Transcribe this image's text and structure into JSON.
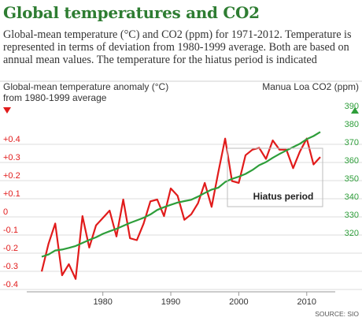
{
  "title": "Global temperatures and CO2",
  "subtitle": "Global-mean temperature (°C) and CO2 (ppm) for 1971-2012. Temperature is represented in terms of deviation from 1980-1999 average. Both are based on annual mean values. The temperature for the hiatus period is indicated",
  "source": "SOURCE: SIO",
  "colors": {
    "temperature": "#e11b1b",
    "co2": "#2e9e3a",
    "title": "#2e7d32"
  },
  "chart_data": {
    "type": "line",
    "x": [
      1971,
      1972,
      1973,
      1974,
      1975,
      1976,
      1977,
      1978,
      1979,
      1980,
      1981,
      1982,
      1983,
      1984,
      1985,
      1986,
      1987,
      1988,
      1989,
      1990,
      1991,
      1992,
      1993,
      1994,
      1995,
      1996,
      1997,
      1998,
      1999,
      2000,
      2001,
      2002,
      2003,
      2004,
      2005,
      2006,
      2007,
      2008,
      2009,
      2010,
      2011,
      2012
    ],
    "xticks": [
      "1980",
      "1990",
      "2000",
      "2010"
    ],
    "xlim": [
      1969.5,
      2013.5
    ],
    "series": [
      {
        "name": "Global-mean temperature anomaly (°C) from 1980-1999 average",
        "axis": "left",
        "color": "#e11b1b",
        "values": [
          -0.37,
          -0.22,
          -0.11,
          -0.39,
          -0.33,
          -0.41,
          -0.07,
          -0.24,
          -0.12,
          -0.08,
          -0.04,
          -0.18,
          0.02,
          -0.19,
          -0.2,
          -0.11,
          0.01,
          0.02,
          -0.07,
          0.08,
          0.04,
          -0.09,
          -0.06,
          0.0,
          0.11,
          -0.02,
          0.17,
          0.35,
          0.12,
          0.11,
          0.26,
          0.29,
          0.3,
          0.24,
          0.34,
          0.29,
          0.29,
          0.19,
          0.28,
          0.35,
          0.21,
          0.25
        ]
      },
      {
        "name": "Manua Loa CO2 (ppm)",
        "axis": "right",
        "color": "#2e9e3a",
        "values": [
          326.3,
          327.5,
          329.7,
          330.2,
          331.1,
          332.1,
          333.8,
          335.4,
          336.8,
          338.7,
          340.1,
          341.4,
          343.0,
          344.6,
          346.0,
          347.4,
          349.2,
          351.6,
          353.1,
          354.4,
          355.6,
          356.4,
          357.1,
          358.8,
          360.8,
          362.6,
          363.7,
          366.7,
          368.4,
          369.6,
          371.1,
          373.2,
          375.8,
          377.5,
          379.8,
          381.9,
          383.8,
          385.6,
          387.4,
          389.9,
          391.6,
          393.8
        ]
      }
    ],
    "left_axis": {
      "label": "Global-mean temperature anomaly (°C)\nfrom 1980-1999 average",
      "ticks": [
        "+0.4",
        "+0.3",
        "+0.2",
        "+0.1",
        "0",
        "-0.1",
        "-0.2",
        "-0.3",
        "-0.4"
      ],
      "ylim": [
        -0.42,
        0.4
      ],
      "tick_color": "#e11b1b"
    },
    "right_axis": {
      "label": "Manua Loa CO2 (ppm)",
      "ticks": [
        "390",
        "380",
        "370",
        "360",
        "350",
        "340",
        "330",
        "320"
      ],
      "ylim": [
        311.6,
        393.5
      ],
      "tick_color": "#2e9e3a"
    },
    "annotation": {
      "label": "Hiatus period",
      "x_range": [
        1998,
        2012
      ]
    },
    "grid": true
  }
}
